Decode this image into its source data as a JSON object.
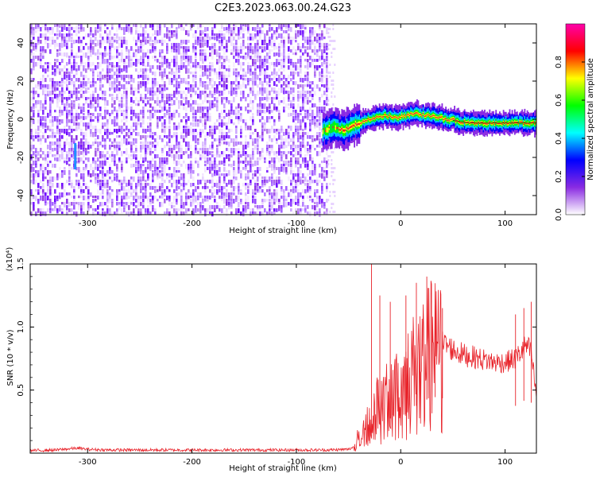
{
  "title": "C2E3.2023.063.00.24.G23",
  "chart_data": [
    {
      "type": "heatmap",
      "xlabel": "Height of straight line (km)",
      "ylabel": "Frequency (Hz)",
      "xlim": [
        -355,
        130
      ],
      "ylim": [
        -50,
        50
      ],
      "x_ticks": [
        -300,
        -200,
        -100,
        0,
        100
      ],
      "y_ticks": [
        -40,
        -20,
        0,
        20,
        40
      ],
      "colorbar": {
        "label": "Normalized spectral amplitude",
        "range": [
          0.0,
          1.0
        ],
        "ticks": [
          "0.0",
          "0.2",
          "0.4",
          "0.6",
          "0.8"
        ],
        "colors": [
          "#ffffff",
          "#8a2be2",
          "#0000ff",
          "#00ffff",
          "#00ff00",
          "#ffff00",
          "#ff0000",
          "#ff00aa"
        ]
      },
      "noise_region": [
        -355,
        -70
      ],
      "signal_ridge": {
        "x": [
          -75,
          -65,
          -55,
          -45,
          -35,
          -25,
          -15,
          -5,
          5,
          15,
          25,
          35,
          45,
          55,
          65,
          75,
          85,
          95,
          105,
          115,
          130
        ],
        "y": [
          -6,
          -4,
          -6,
          -3,
          -1,
          1,
          2,
          1,
          2,
          3,
          2,
          1,
          0,
          -1,
          -2,
          -2,
          -2,
          -2,
          -2,
          -2,
          -2
        ]
      }
    },
    {
      "type": "line",
      "xlabel": "Height of straight line (km)",
      "ylabel": "SNR (10 * v/v)",
      "y_multiplier": "(x10⁴)",
      "xlim": [
        -355,
        130
      ],
      "ylim": [
        0,
        1.5
      ],
      "x_ticks": [
        -300,
        -200,
        -100,
        0,
        100
      ],
      "y_ticks": [
        "0.5",
        "1.0",
        "1.5"
      ],
      "color": "#e8232a",
      "series": [
        {
          "x": [
            -355,
            -330,
            -310,
            -300,
            -280,
            -250,
            -200,
            -150,
            -100,
            -70,
            -50,
            -45,
            -40,
            -35,
            -30,
            -25,
            -20,
            -15,
            -10,
            -5,
            0,
            5,
            10,
            15,
            20,
            25,
            30,
            35,
            40,
            45,
            50,
            60,
            70,
            80,
            90,
            100,
            110,
            115,
            120,
            125,
            130
          ],
          "y": [
            0.02,
            0.025,
            0.04,
            0.03,
            0.025,
            0.025,
            0.025,
            0.025,
            0.025,
            0.025,
            0.03,
            0.05,
            0.15,
            0.22,
            0.3,
            0.35,
            0.45,
            0.42,
            0.55,
            0.5,
            0.58,
            0.62,
            0.7,
            0.75,
            0.8,
            0.85,
            0.9,
            0.88,
            0.87,
            0.85,
            0.82,
            0.78,
            0.76,
            0.74,
            0.72,
            0.72,
            0.75,
            0.8,
            0.85,
            0.8,
            0.45
          ]
        }
      ],
      "spikes": {
        "x": [
          -28,
          -20,
          -10,
          5,
          15,
          25,
          33,
          40,
          110,
          118,
          125
        ],
        "y": [
          1.5,
          1.25,
          1.2,
          1.25,
          1.35,
          1.4,
          1.22,
          1.15,
          1.1,
          1.15,
          1.2
        ]
      }
    }
  ]
}
